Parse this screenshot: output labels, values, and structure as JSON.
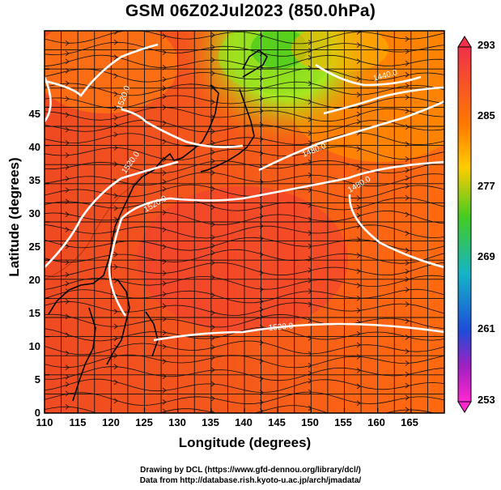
{
  "title": "GSM 06Z02Jul2023 (850.0hPa)",
  "map": {
    "xlabel": "Longitude (degrees)",
    "ylabel": "Latitude  (degrees)",
    "lon_ticks": [
      "110",
      "115",
      "120",
      "125",
      "130",
      "135",
      "140",
      "145",
      "150",
      "155",
      "160",
      "165"
    ],
    "lat_ticks": [
      "0",
      "5",
      "10",
      "15",
      "20",
      "25",
      "30",
      "35",
      "40",
      "45"
    ],
    "contour_labels": [
      "1520.0",
      "1520.0",
      "1520.0",
      "1480.0",
      "1440.0",
      "1480.0",
      "1520.0"
    ],
    "colors": {
      "warm": "#e8381a",
      "mid": "#ff7a00",
      "cool": "#7ee020",
      "cold": "#22c010"
    }
  },
  "colorbar": {
    "ticks": [
      "293",
      "285",
      "277",
      "269",
      "261",
      "253"
    ],
    "colors": [
      "#f0304a",
      "#ff7a00",
      "#ffcc00",
      "#44cc22",
      "#14b4c8",
      "#1e4cd8",
      "#a020c0",
      "#ff28d0"
    ]
  },
  "credits": {
    "line1": "Drawing by DCL (https://www.gfd-dennou.org/library/dcl/)",
    "line2": "Data from http://database.rish.kyoto-u.ac.jp/arch/jmadata/"
  }
}
